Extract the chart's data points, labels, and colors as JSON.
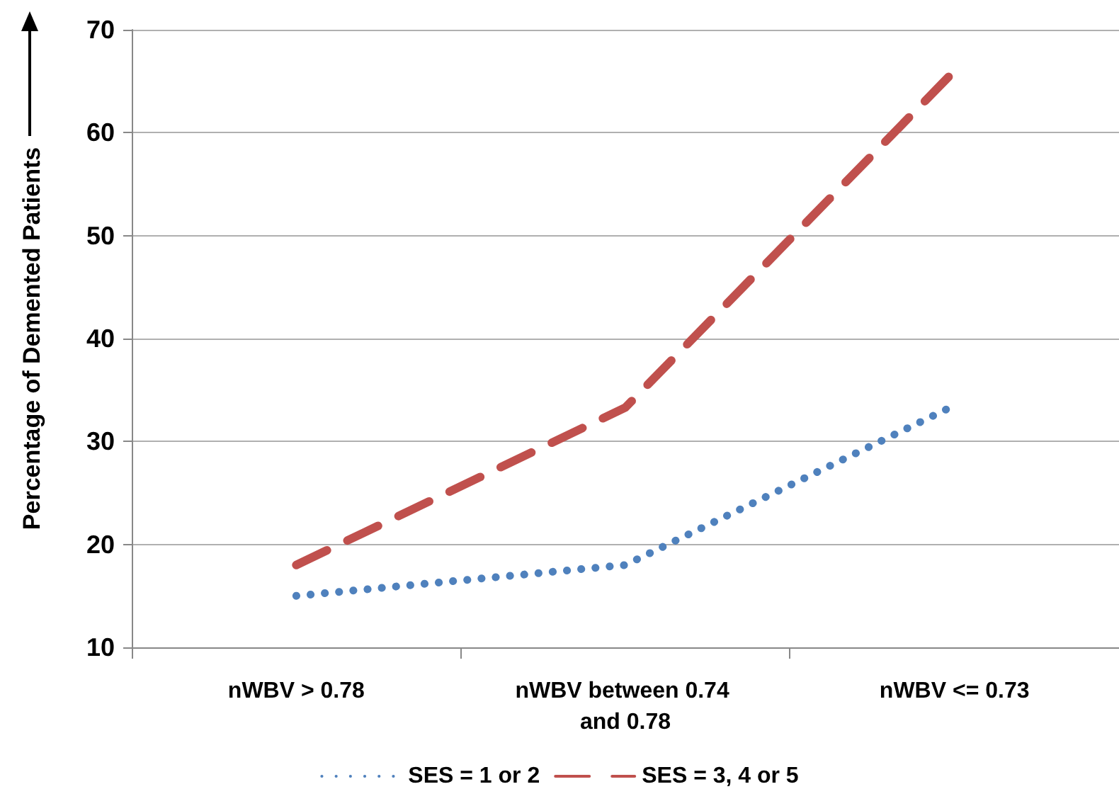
{
  "chart_data": {
    "type": "line",
    "ylabel": "Percentage of Demented Patients",
    "categories": [
      "nWBV > 0.78",
      "nWBV between 0.74 and 0.78",
      "nWBV <= 0.73"
    ],
    "series": [
      {
        "name": "SES = 1 or 2",
        "color": "#4f81bd",
        "values": [
          15,
          18,
          33.5
        ],
        "line_style": "dotted"
      },
      {
        "name": "SES = 3, 4 or 5",
        "color": "#c0504d",
        "values": [
          18,
          33.3,
          66
        ],
        "line_style": "dashed"
      }
    ],
    "ylim": [
      10,
      70
    ],
    "yticks": [
      10,
      20,
      30,
      40,
      50,
      60,
      70
    ],
    "grid": "y",
    "legend": "bottom",
    "marker": "none"
  }
}
